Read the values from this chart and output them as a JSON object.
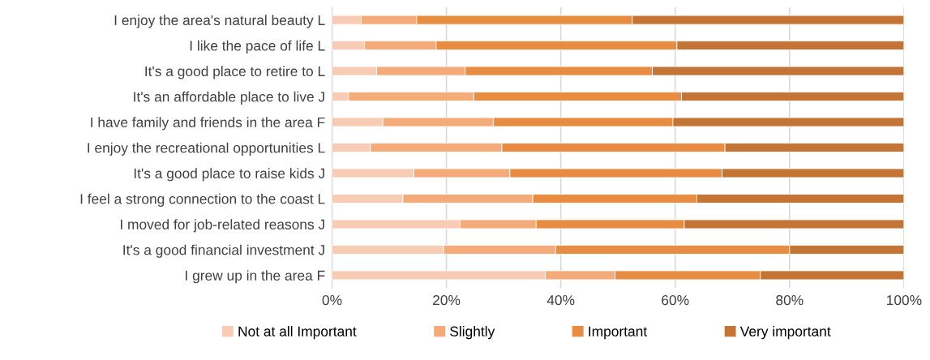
{
  "chart_data": {
    "type": "bar",
    "orientation": "horizontal",
    "stacked": true,
    "categories": [
      "I enjoy the area's natural beauty L",
      "I like the pace of life L",
      "It's a good place to retire to L",
      "It's an affordable place to live J",
      "I have family and friends in the area F",
      "I enjoy the recreational opportunities L",
      "It's a good place to raise kids J",
      "I feel a strong connection to the coast L",
      "I moved for job-related reasons J",
      "It's a good financial investment J",
      "I grew up in the area F"
    ],
    "series": [
      {
        "name": "Not at all Important",
        "color": "#f8cbb4",
        "values": [
          5.1,
          5.7,
          7.8,
          2.9,
          8.9,
          6.7,
          14.3,
          12.4,
          22.4,
          19.5,
          37.3
        ]
      },
      {
        "name": "Slightly",
        "color": "#f5aa79",
        "values": [
          9.7,
          12.5,
          15.5,
          21.9,
          19.3,
          23.0,
          16.8,
          22.7,
          13.3,
          19.6,
          12.2
        ]
      },
      {
        "name": "Important",
        "color": "#e88c41",
        "values": [
          37.7,
          42.1,
          32.7,
          36.3,
          31.4,
          39.0,
          37.1,
          28.7,
          25.9,
          40.9,
          25.4
        ]
      },
      {
        "name": "Very important",
        "color": "#c47535",
        "values": [
          47.5,
          39.7,
          44.0,
          38.9,
          40.4,
          31.3,
          31.8,
          36.2,
          38.4,
          20.0,
          25.1
        ]
      }
    ],
    "xlim": [
      0,
      100
    ],
    "xticks": [
      {
        "value": 0,
        "label": "0%"
      },
      {
        "value": 20,
        "label": "20%"
      },
      {
        "value": 40,
        "label": "40%"
      },
      {
        "value": 60,
        "label": "60%"
      },
      {
        "value": 80,
        "label": "80%"
      },
      {
        "value": 100,
        "label": "100%"
      }
    ],
    "grid": "x",
    "legend": "bottom"
  }
}
